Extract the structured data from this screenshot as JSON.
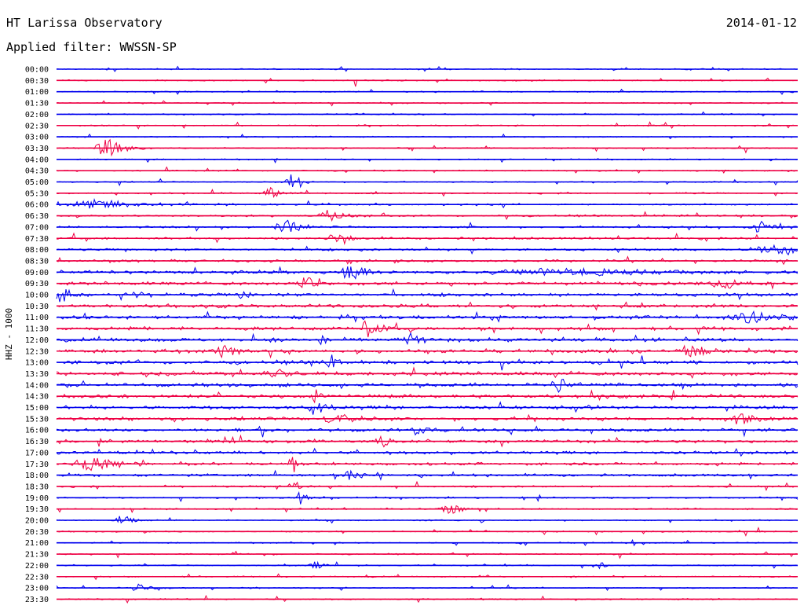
{
  "header": {
    "station": "HT Larissa Observatory",
    "date": "2014-01-12",
    "filter_label": "Applied filter: WWSSN-SP"
  },
  "chart_data": {
    "type": "line",
    "kind": "helicorder",
    "ylabel": "HHZ - 1000",
    "row_labels": [
      "00:00",
      "00:30",
      "01:00",
      "01:30",
      "02:00",
      "02:30",
      "03:00",
      "03:30",
      "04:00",
      "04:30",
      "05:00",
      "05:30",
      "06:00",
      "06:30",
      "07:00",
      "07:30",
      "08:00",
      "08:30",
      "09:00",
      "09:30",
      "10:00",
      "10:30",
      "11:00",
      "11:30",
      "12:00",
      "12:30",
      "13:00",
      "13:30",
      "14:00",
      "14:30",
      "15:00",
      "15:30",
      "16:00",
      "16:30",
      "17:00",
      "17:30",
      "18:00",
      "18:30",
      "19:00",
      "19:30",
      "20:00",
      "20:30",
      "21:00",
      "21:30",
      "22:00",
      "22:30",
      "23:00",
      "23:30"
    ],
    "colors": [
      "#0000ee",
      "#ee0044"
    ],
    "grid": false,
    "legend": "none"
  }
}
